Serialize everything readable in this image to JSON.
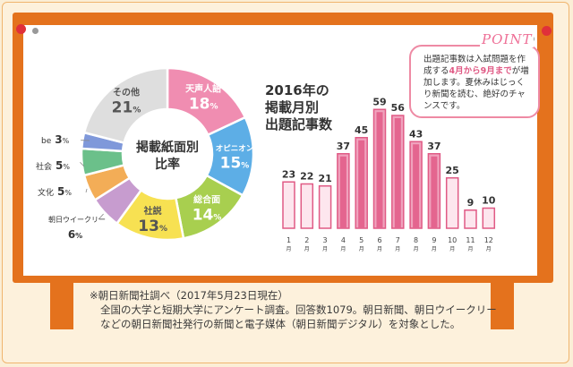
{
  "colors": {
    "board": "#e4721d",
    "accent": "#ee6f96",
    "bar_fill": "#f5c3d4",
    "bar_stroke": "#e05a85"
  },
  "donut": {
    "center_title_1": "掲載紙面別",
    "center_title_2": "比率",
    "segments": [
      {
        "label": "天声人語",
        "pct": 18,
        "color": "#f08db1"
      },
      {
        "label": "オピニオン",
        "pct": 15,
        "color": "#5daee6"
      },
      {
        "label": "総合面",
        "pct": 14,
        "color": "#a8cf4f"
      },
      {
        "label": "社説",
        "pct": 13,
        "color": "#f7e152"
      },
      {
        "label": "朝日ウイークリー",
        "pct": 6,
        "color": "#c79ccf"
      },
      {
        "label": "文化",
        "pct": 5,
        "color": "#f3ad57"
      },
      {
        "label": "社会",
        "pct": 5,
        "color": "#6bc08a"
      },
      {
        "label": "be",
        "pct": 3,
        "color": "#7f98da"
      },
      {
        "label": "その他",
        "pct": 21,
        "color": "#dedede"
      }
    ],
    "pct_unit": "%"
  },
  "chart_data": {
    "type": "bar",
    "title": "2016年の掲載月別出題記事数",
    "categories": [
      "1",
      "2",
      "3",
      "4",
      "5",
      "6",
      "7",
      "8",
      "9",
      "10",
      "11",
      "12"
    ],
    "values": [
      23,
      22,
      21,
      37,
      45,
      59,
      56,
      43,
      37,
      25,
      9,
      10
    ],
    "highlight": [
      "4",
      "5",
      "6",
      "7",
      "8",
      "9"
    ],
    "month_unit": "月",
    "ylim": [
      0,
      60
    ]
  },
  "bar_title": {
    "line1": "2016年の",
    "line2": "掲載月別",
    "line3": "出題記事数"
  },
  "point": {
    "label": "POINT",
    "text_before": "出題記事数は入試問題を作成する",
    "highlight": "4月から9月まで",
    "text_after": "が増加します。夏休みはじっくり新聞を読む、絶好のチャンスです。"
  },
  "note": {
    "line1": "※朝日新聞社調べ（2017年5月23日現在）",
    "line2": "全国の大学と短期大学にアンケート調査。回答数1079。朝日新聞、朝日ウイークリー",
    "line3": "などの朝日新聞社発行の新聞と電子媒体（朝日新聞デジタル）を対象とした。"
  }
}
